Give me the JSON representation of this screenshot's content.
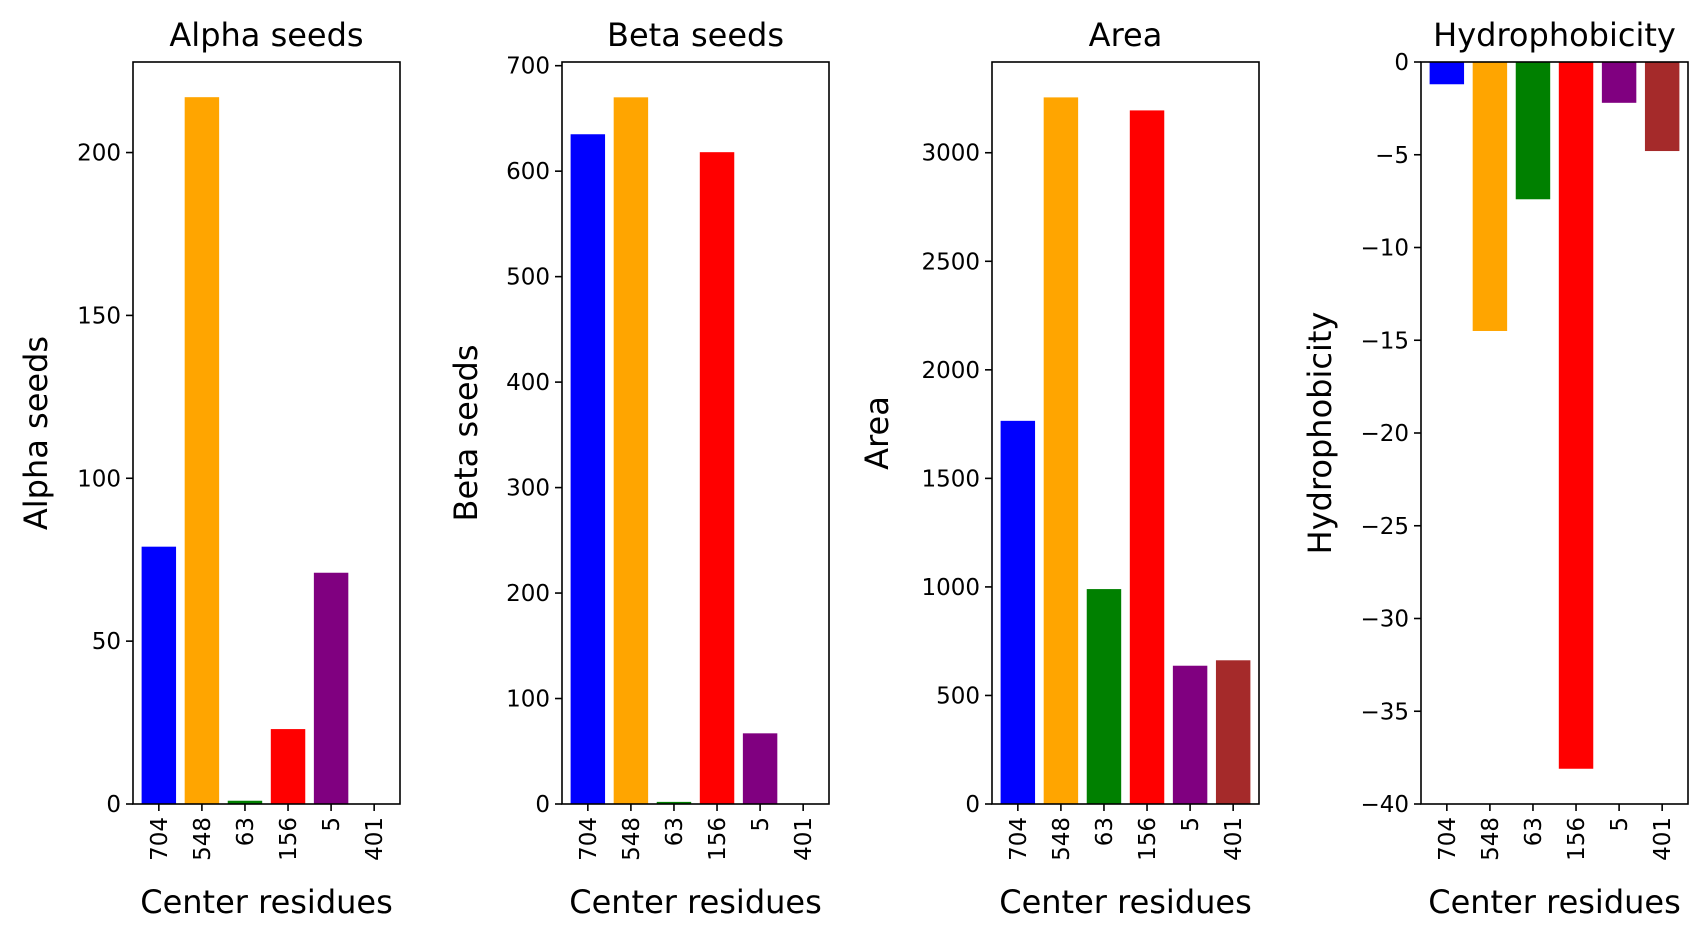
{
  "chart_data": [
    {
      "type": "bar",
      "title": "Alpha seeds",
      "xlabel": "Center residues",
      "ylabel": "Alpha seeds",
      "categories": [
        "704",
        "548",
        "63",
        "156",
        "5",
        "401"
      ],
      "values": [
        79,
        217,
        1,
        23,
        71,
        0
      ],
      "colors": [
        "#0000ff",
        "#ffa500",
        "#008000",
        "#ff0000",
        "#800080",
        "#a52a2a"
      ],
      "ylim": [
        0,
        227.8
      ],
      "yticks": [
        0,
        50,
        100,
        150,
        200
      ],
      "ytick_labels": [
        "0",
        "50",
        "100",
        "150",
        "200"
      ]
    },
    {
      "type": "bar",
      "title": "Beta seeds",
      "xlabel": "Center residues",
      "ylabel": "Beta seeds",
      "categories": [
        "704",
        "548",
        "63",
        "156",
        "5",
        "401"
      ],
      "values": [
        635,
        670,
        2,
        618,
        67,
        0
      ],
      "colors": [
        "#0000ff",
        "#ffa500",
        "#008000",
        "#ff0000",
        "#800080",
        "#a52a2a"
      ],
      "ylim": [
        0,
        703.5
      ],
      "yticks": [
        0,
        100,
        200,
        300,
        400,
        500,
        600,
        700
      ],
      "ytick_labels": [
        "0",
        "100",
        "200",
        "300",
        "400",
        "500",
        "600",
        "700"
      ]
    },
    {
      "type": "bar",
      "title": "Area",
      "xlabel": "Center residues",
      "ylabel": "Area",
      "categories": [
        "704",
        "548",
        "63",
        "156",
        "5",
        "401"
      ],
      "values": [
        1765,
        3255,
        990,
        3195,
        637,
        662
      ],
      "colors": [
        "#0000ff",
        "#ffa500",
        "#008000",
        "#ff0000",
        "#800080",
        "#a52a2a"
      ],
      "ylim": [
        0,
        3418
      ],
      "yticks": [
        0,
        500,
        1000,
        1500,
        2000,
        2500,
        3000
      ],
      "ytick_labels": [
        "0",
        "500",
        "1000",
        "1500",
        "2000",
        "2500",
        "3000"
      ]
    },
    {
      "type": "bar",
      "title": "Hydrophobicity",
      "xlabel": "Center residues",
      "ylabel": "Hydrophobicity",
      "categories": [
        "704",
        "548",
        "63",
        "156",
        "5",
        "401"
      ],
      "values": [
        -1.2,
        -14.5,
        -7.4,
        -38.1,
        -2.2,
        -4.8
      ],
      "colors": [
        "#0000ff",
        "#ffa500",
        "#008000",
        "#ff0000",
        "#800080",
        "#a52a2a"
      ],
      "ylim": [
        -40,
        0
      ],
      "yticks": [
        0,
        -5,
        -10,
        -15,
        -20,
        -25,
        -30,
        -35,
        -40
      ],
      "ytick_labels": [
        "0",
        "−5",
        "−10",
        "−15",
        "−20",
        "−25",
        "−30",
        "−35",
        "−40"
      ]
    }
  ]
}
